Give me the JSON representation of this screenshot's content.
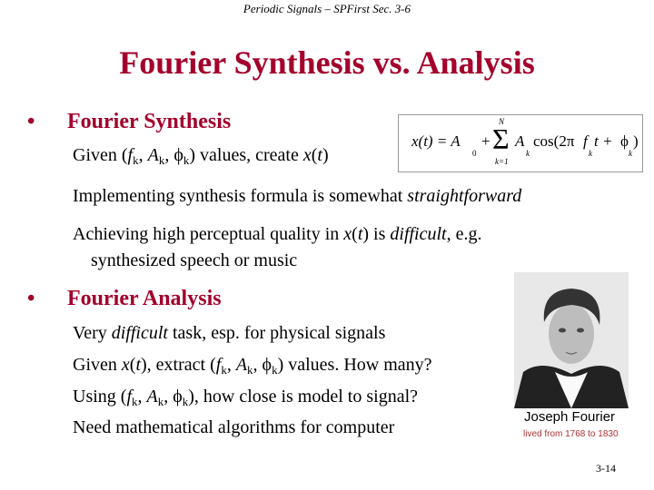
{
  "header": "Periodic Signals – SPFirst Sec. 3-6",
  "title": "Fourier Synthesis vs. Analysis",
  "sections": [
    {
      "heading": "Fourier Synthesis",
      "lines": [
        [
          "Given (",
          "f",
          "k",
          ", ",
          "A",
          "k",
          ", ",
          "ϕ",
          "k",
          ") values, create ",
          "x",
          "(",
          "t",
          ")"
        ],
        [
          "Implementing synthesis formula is somewhat ",
          "straightforward"
        ],
        [
          "Achieving high perceptual quality in ",
          "x",
          "(",
          "t",
          ") is ",
          "difficult",
          ", e.g."
        ],
        [
          "synthesized speech or music"
        ]
      ]
    },
    {
      "heading": "Fourier Analysis",
      "lines": [
        [
          "Very ",
          "difficult",
          " task, esp. for physical signals"
        ],
        [
          "Given ",
          "x",
          "(",
          "t",
          "), extract (",
          "f",
          "k",
          ", ",
          "A",
          "k",
          ", ",
          "ϕ",
          "k",
          ") values. How many?"
        ],
        [
          "Using (",
          "f",
          "k",
          ", ",
          "A",
          "k",
          ", ",
          "ϕ",
          "k",
          "), how close is model to signal?"
        ],
        [
          "Need mathematical algorithms for computer"
        ]
      ]
    }
  ],
  "formula": [
    "x(t) = A",
    "0",
    "+",
    "Σ",
    "N",
    "k=1",
    "A",
    "k",
    "cos(2π",
    "f",
    "k",
    "t +",
    "ϕ",
    "k",
    ")"
  ],
  "portrait": {
    "name": "Joseph Fourier",
    "caption": "lived from 1768 to 1830"
  },
  "page_number": "3-14"
}
